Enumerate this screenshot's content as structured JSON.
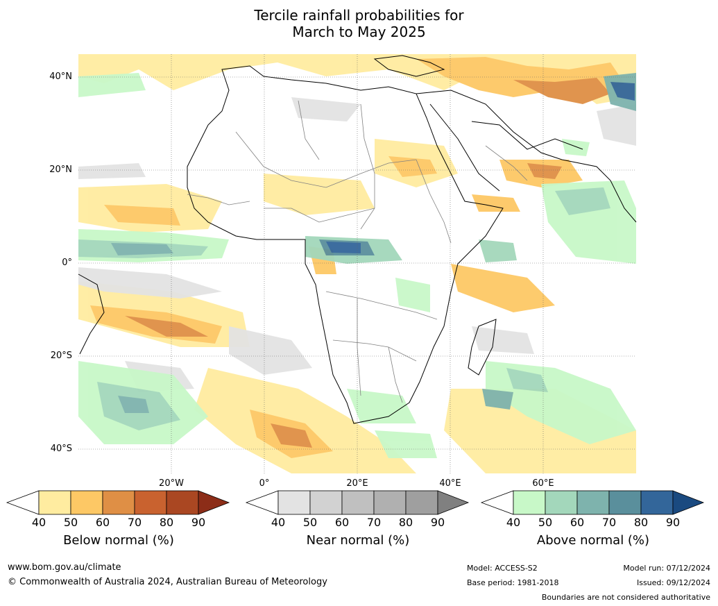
{
  "title_line1": "Tercile rainfall probabilities for",
  "title_line2": "March to May 2025",
  "lat_labels": [
    "40°N",
    "20°N",
    "0°",
    "20°S",
    "40°S"
  ],
  "lon_labels": [
    "20°W",
    "0°",
    "20°E",
    "40°E",
    "60°E"
  ],
  "legends": [
    {
      "label": "Below normal (%)",
      "ticks": [
        "40",
        "50",
        "60",
        "70",
        "80",
        "90"
      ],
      "colors": [
        "#ffffff",
        "#ffeca0",
        "#fdc865",
        "#df8f45",
        "#c9622f",
        "#aa4722",
        "#8c2d18"
      ]
    },
    {
      "label": "Near normal (%)",
      "ticks": [
        "40",
        "50",
        "60",
        "70",
        "80",
        "90"
      ],
      "colors": [
        "#ffffff",
        "#e3e3e3",
        "#d2d2d2",
        "#c0c0c0",
        "#b0b0b0",
        "#9f9f9f",
        "#808080"
      ]
    },
    {
      "label": "Above normal (%)",
      "ticks": [
        "40",
        "50",
        "60",
        "70",
        "80",
        "90"
      ],
      "colors": [
        "#ffffff",
        "#c8f8c8",
        "#a3d7bb",
        "#7eb3ad",
        "#5a8f9c",
        "#33669a",
        "#1a4a80"
      ]
    }
  ],
  "footer": {
    "website": "www.bom.gov.au/climate",
    "copyright": "© Commonwealth of Australia 2024, Australian Bureau of Meteorology",
    "model": "Model: ACCESS-S2",
    "base_period": "Base period: 1981-2018",
    "model_run": "Model run: 07/12/2024",
    "issued": "Issued: 09/12/2024",
    "disclaimer": "Boundaries are not considered authoritative"
  }
}
